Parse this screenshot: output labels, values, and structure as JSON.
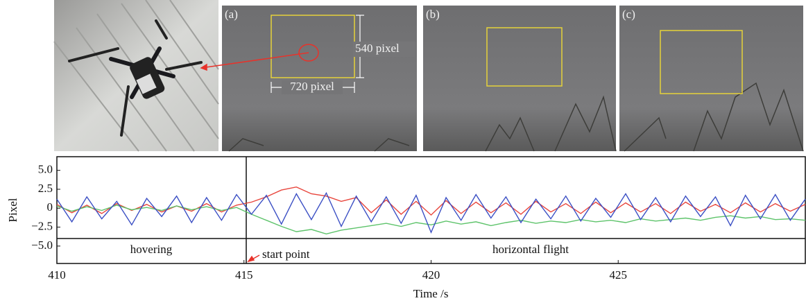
{
  "panels": {
    "labels": [
      "(a)",
      "(b)",
      "(c)"
    ],
    "height_label": "540 pixel",
    "width_label": "720 pixel"
  },
  "chart_data": {
    "type": "line",
    "x_label": "Time /s",
    "y_label": "Pixel",
    "annotations": [
      "hovering",
      "start point",
      "horizontal flight"
    ],
    "x": [
      410,
      410.4,
      410.8,
      411.2,
      411.6,
      412,
      412.4,
      412.8,
      413.2,
      413.6,
      414,
      414.4,
      414.8,
      415.2,
      415.6,
      416,
      416.4,
      416.8,
      417.2,
      417.6,
      418,
      418.4,
      418.8,
      419.2,
      419.6,
      420,
      420.4,
      420.8,
      421.2,
      421.6,
      422,
      422.4,
      422.8,
      423.2,
      423.6,
      424,
      424.4,
      424.8,
      425.2,
      425.6,
      426,
      426.4,
      426.8,
      427.2,
      427.6,
      428,
      428.4,
      428.8,
      429.2,
      429.6,
      430
    ],
    "series": [
      {
        "color": "#e8453c",
        "values": [
          0.5,
          -0.6,
          0.4,
          -0.7,
          0.6,
          -0.3,
          0.5,
          -0.5,
          0.3,
          -0.4,
          0.6,
          -0.5,
          0.4,
          0.8,
          1.5,
          2.4,
          2.8,
          1.9,
          1.6,
          0.9,
          1.4,
          -0.6,
          1.1,
          -0.8,
          0.9,
          -0.9,
          1.0,
          -0.7,
          0.8,
          -0.6,
          0.7,
          -0.8,
          0.9,
          -0.5,
          0.6,
          -0.7,
          0.8,
          -0.6,
          0.7,
          -0.5,
          0.6,
          -0.7,
          0.8,
          -0.4,
          0.5,
          -0.6,
          0.7,
          -0.5,
          0.6,
          -0.4,
          0.5
        ]
      },
      {
        "color": "#5dc36a",
        "values": [
          0.3,
          -0.4,
          0.2,
          -0.3,
          0.4,
          -0.2,
          0.1,
          -0.3,
          0.3,
          -0.2,
          0.2,
          -0.3,
          0.1,
          -0.8,
          -1.6,
          -2.4,
          -3.1,
          -2.8,
          -3.4,
          -2.9,
          -2.6,
          -2.3,
          -2.0,
          -2.4,
          -1.9,
          -2.2,
          -1.7,
          -2.1,
          -1.8,
          -2.3,
          -1.9,
          -1.6,
          -2.0,
          -1.7,
          -1.9,
          -1.5,
          -1.8,
          -1.6,
          -1.9,
          -1.4,
          -1.7,
          -1.5,
          -1.3,
          -1.6,
          -1.2,
          -1.0,
          -1.3,
          -1.1,
          -1.5,
          -1.4,
          -1.6
        ]
      },
      {
        "color": "#3b4fc4",
        "values": [
          1.2,
          -1.8,
          1.5,
          -1.4,
          0.9,
          -2.2,
          1.3,
          -1.1,
          1.6,
          -1.9,
          1.4,
          -1.6,
          1.8,
          -0.8,
          1.7,
          -2.1,
          1.9,
          -1.5,
          2.0,
          -2.4,
          1.6,
          -1.8,
          1.5,
          -2.0,
          1.7,
          -3.2,
          1.4,
          -1.6,
          1.8,
          -1.3,
          1.5,
          -1.9,
          1.2,
          -1.4,
          1.6,
          -1.7,
          1.3,
          -1.2,
          1.9,
          -1.5,
          1.4,
          -1.8,
          1.6,
          -1.1,
          1.5,
          -2.3,
          1.7,
          -1.4,
          1.8,
          -1.6,
          1.2
        ]
      }
    ],
    "xlim": [
      410,
      430
    ],
    "xticks": [
      410,
      415,
      420,
      425
    ],
    "ylim": [
      -7.3,
      6.8
    ],
    "yticks": [
      {
        "value": 5,
        "label": "5.0"
      },
      {
        "value": 2.5,
        "label": "2.5"
      },
      0,
      {
        "value": -2.5,
        "label": "−2.5"
      },
      {
        "value": -5,
        "label": "−5.0"
      }
    ]
  }
}
